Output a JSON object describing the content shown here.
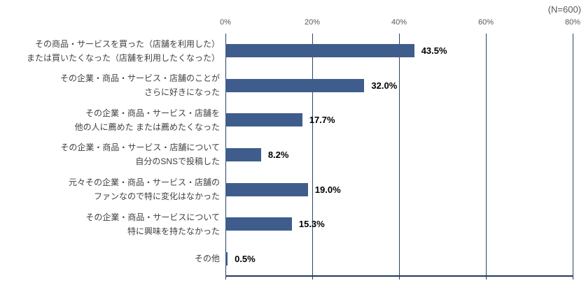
{
  "chart_data": {
    "type": "bar",
    "orientation": "horizontal",
    "title": "",
    "n_label": "(N=600)",
    "categories": [
      [
        "その商品・サービスを買った（店舗を利用した）",
        "または買いたくなった（店舗を利用したくなった）"
      ],
      [
        "その企業・商品・サービス・店舗のことが",
        "さらに好きになった"
      ],
      [
        "その企業・商品・サービス・店舗を",
        "他の人に薦めた または薦めたくなった"
      ],
      [
        "その企業・商品・サービス・店舗について",
        "自分のSNSで投稿した"
      ],
      [
        "元々その企業・商品・サービス・店舗の",
        "ファンなので特に変化はなかった"
      ],
      [
        "その企業・商品・サービスについて",
        "特に興味を持たなかった"
      ],
      [
        "その他"
      ]
    ],
    "values": [
      43.5,
      32.0,
      17.7,
      8.2,
      19.0,
      15.3,
      0.5
    ],
    "value_labels": [
      "43.5%",
      "32.0%",
      "17.7%",
      "8.2%",
      "19.0%",
      "15.3%",
      "0.5%"
    ],
    "x_ticks": [
      "0%",
      "20%",
      "40%",
      "60%",
      "80%"
    ],
    "xlim": [
      0,
      80
    ],
    "grid": true,
    "legend": "none",
    "colors": {
      "bar": "#3F5D8C",
      "grid": "#2B4568",
      "axis": "#24395C",
      "tick_label": "#595959",
      "category_label": "#404040",
      "value_label": "#000000",
      "background": "#FFFFFF"
    }
  }
}
